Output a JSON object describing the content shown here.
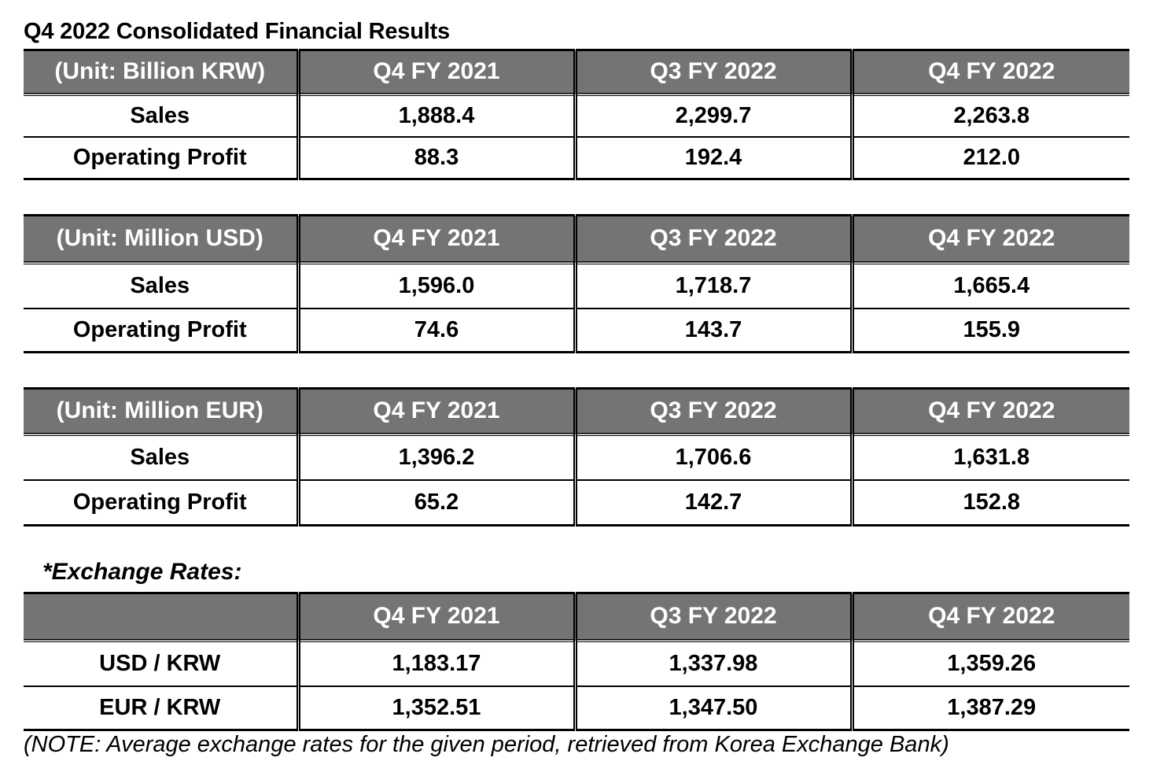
{
  "title": "Q4 2022 Consolidated Financial Results",
  "tables": [
    {
      "unit": "(Unit: Billion KRW)",
      "columns": [
        "Q4 FY 2021",
        "Q3 FY 2022",
        "Q4 FY 2022"
      ],
      "rows": [
        {
          "label": "Sales",
          "values": [
            "1,888.4",
            "2,299.7",
            "2,263.8"
          ]
        },
        {
          "label": "Operating Profit",
          "values": [
            "88.3",
            "192.4",
            "212.0"
          ]
        }
      ]
    },
    {
      "unit": "(Unit: Million USD)",
      "columns": [
        "Q4 FY 2021",
        "Q3 FY 2022",
        "Q4 FY 2022"
      ],
      "rows": [
        {
          "label": "Sales",
          "values": [
            "1,596.0",
            "1,718.7",
            "1,665.4"
          ]
        },
        {
          "label": "Operating Profit",
          "values": [
            "74.6",
            "143.7",
            "155.9"
          ]
        }
      ]
    },
    {
      "unit": "(Unit: Million EUR)",
      "columns": [
        "Q4 FY 2021",
        "Q3 FY 2022",
        "Q4 FY 2022"
      ],
      "rows": [
        {
          "label": "Sales",
          "values": [
            "1,396.2",
            "1,706.6",
            "1,631.8"
          ]
        },
        {
          "label": "Operating Profit",
          "values": [
            "65.2",
            "142.7",
            "152.8"
          ]
        }
      ]
    }
  ],
  "exchange_rates": {
    "heading": "*Exchange Rates:",
    "unit": "",
    "columns": [
      "Q4 FY 2021",
      "Q3 FY 2022",
      "Q4 FY 2022"
    ],
    "rows": [
      {
        "label": "USD / KRW",
        "values": [
          "1,183.17",
          "1,337.98",
          "1,359.26"
        ]
      },
      {
        "label": "EUR / KRW",
        "values": [
          "1,352.51",
          "1,347.50",
          "1,387.29"
        ]
      }
    ]
  },
  "note": "(NOTE: Average exchange rates for the given period, retrieved from Korea Exchange Bank)",
  "colors": {
    "header_bg": "#747474",
    "header_text": "#ffffff",
    "border": "#000000"
  }
}
